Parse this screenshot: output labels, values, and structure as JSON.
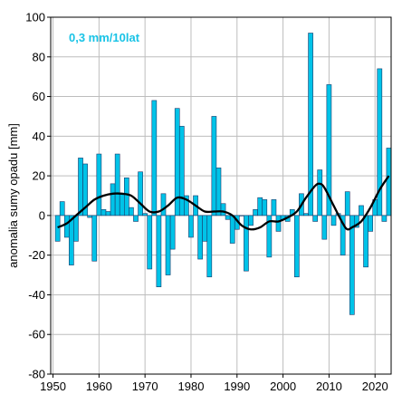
{
  "chart_data": {
    "type": "bar",
    "title": "",
    "xlabel": "",
    "ylabel": "anomalia sumy opadu [mm]",
    "annotation": "0,3 mm/10lat",
    "colors": {
      "bars": "#00c3e8",
      "bar_edge": "#1b3a6b",
      "trend": "#000000",
      "annotation": "#19c3e6",
      "grid": "#bdbdbd"
    },
    "grid": true,
    "xlim": [
      1949.5,
      2023.5
    ],
    "ylim": [
      -80,
      100
    ],
    "x_ticks": [
      1950,
      1960,
      1970,
      1980,
      1990,
      2000,
      2010,
      2020
    ],
    "x_tick_labels": [
      "1950",
      "1960",
      "1970",
      "1980",
      "1990",
      "2000",
      "2010",
      "2020"
    ],
    "y_ticks": [
      -80,
      -60,
      -40,
      -20,
      0,
      20,
      40,
      60,
      80,
      100
    ],
    "y_tick_labels": [
      "-80",
      "-60",
      "-40",
      "-20",
      "0",
      "20",
      "40",
      "60",
      "80",
      "100"
    ],
    "series": [
      {
        "type": "bar",
        "x": [
          1951,
          1952,
          1953,
          1954,
          1955,
          1956,
          1957,
          1958,
          1959,
          1960,
          1961,
          1962,
          1963,
          1964,
          1965,
          1966,
          1967,
          1968,
          1969,
          1970,
          1971,
          1972,
          1973,
          1974,
          1975,
          1976,
          1977,
          1978,
          1979,
          1980,
          1981,
          1982,
          1983,
          1984,
          1985,
          1986,
          1987,
          1988,
          1989,
          1990,
          1991,
          1992,
          1993,
          1994,
          1995,
          1996,
          1997,
          1998,
          1999,
          2000,
          2001,
          2002,
          2003,
          2004,
          2005,
          2006,
          2007,
          2008,
          2009,
          2010,
          2011,
          2012,
          2013,
          2014,
          2015,
          2016,
          2017,
          2018,
          2019,
          2020,
          2021,
          2022,
          2023
        ],
        "values": [
          -13,
          7,
          -11,
          -25,
          -13,
          29,
          26,
          -1,
          -23,
          31,
          3,
          2,
          16,
          31,
          11,
          19,
          4,
          -3,
          22,
          1,
          -27,
          58,
          -36,
          11,
          -30,
          -17,
          54,
          45,
          10,
          -11,
          10,
          -22,
          -13,
          -31,
          50,
          24,
          6,
          -2,
          -14,
          -7,
          0,
          -28,
          -5,
          3,
          9,
          8,
          -21,
          8,
          -8,
          -2,
          -3,
          3,
          -31,
          11,
          1,
          92,
          -3,
          23,
          -12,
          66,
          -5,
          1,
          -20,
          12,
          -50,
          -6,
          5,
          -26,
          -8,
          8,
          74,
          -3,
          34
        ]
      },
      {
        "type": "line",
        "x": [
          1951,
          1953,
          1955,
          1957,
          1959,
          1961,
          1963,
          1965,
          1967,
          1969,
          1971,
          1973,
          1975,
          1977,
          1979,
          1981,
          1983,
          1985,
          1987,
          1989,
          1991,
          1993,
          1995,
          1997,
          1999,
          2001,
          2003,
          2005,
          2007,
          2008,
          2009,
          2011,
          2013,
          2014,
          2015,
          2017,
          2019,
          2021,
          2023
        ],
        "values": [
          -6,
          -4,
          0,
          4,
          8,
          10,
          11,
          11,
          10,
          6,
          2,
          2,
          5,
          9,
          8,
          5,
          2,
          2,
          2,
          0,
          -5,
          -7,
          -6,
          -3,
          -3,
          -1,
          2,
          9,
          15,
          16,
          14,
          5,
          -4,
          -7,
          -6,
          -3,
          4,
          13,
          20
        ]
      }
    ]
  }
}
